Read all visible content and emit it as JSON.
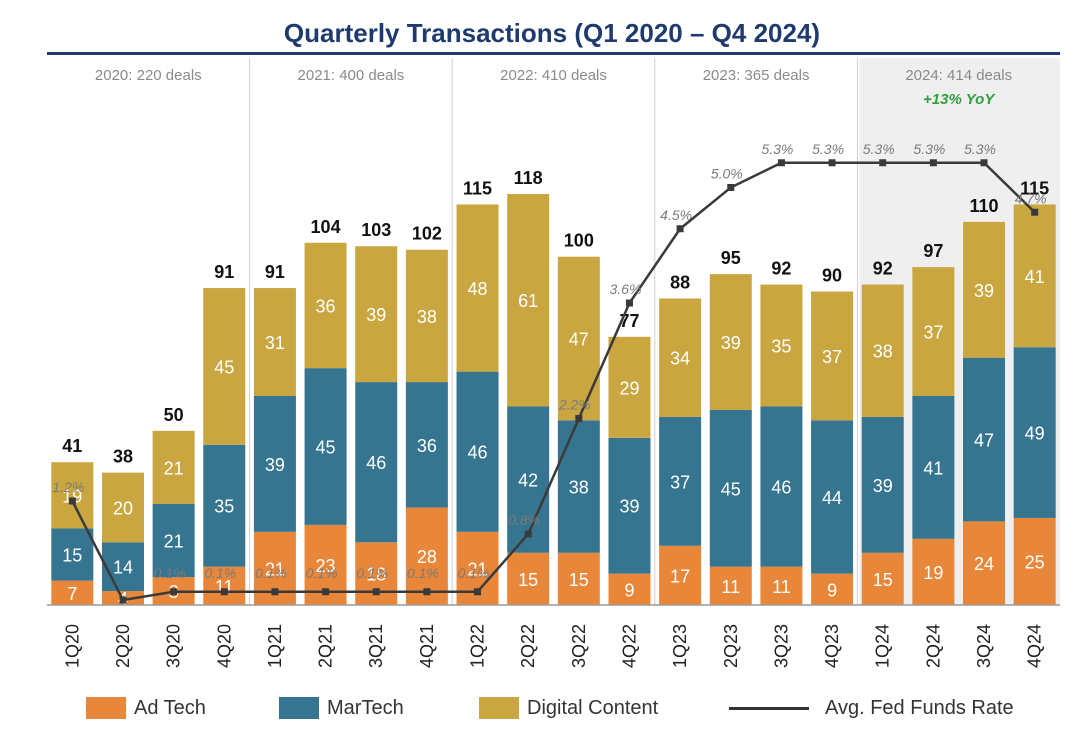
{
  "chart_data": {
    "type": "bar",
    "title": "Quarterly Transactions (Q1 2020 – Q4 2024)",
    "categories": [
      "1Q20",
      "2Q20",
      "3Q20",
      "4Q20",
      "1Q21",
      "2Q21",
      "3Q21",
      "4Q21",
      "1Q22",
      "2Q22",
      "3Q22",
      "4Q22",
      "1Q23",
      "2Q23",
      "3Q23",
      "4Q23",
      "1Q24",
      "2Q24",
      "3Q24",
      "4Q24"
    ],
    "totals": [
      41,
      38,
      50,
      91,
      91,
      104,
      103,
      102,
      115,
      118,
      100,
      77,
      88,
      95,
      92,
      90,
      92,
      97,
      110,
      115
    ],
    "stacked": true,
    "series": [
      {
        "name": "Ad Tech",
        "color": "#e8873a",
        "values": [
          7,
          4,
          8,
          11,
          21,
          23,
          18,
          28,
          21,
          15,
          15,
          9,
          17,
          11,
          11,
          9,
          15,
          19,
          24,
          25
        ]
      },
      {
        "name": "MarTech",
        "color": "#367590",
        "values": [
          15,
          14,
          21,
          35,
          39,
          45,
          46,
          36,
          46,
          42,
          38,
          39,
          37,
          45,
          46,
          44,
          39,
          41,
          47,
          49
        ]
      },
      {
        "name": "Digital Content",
        "color": "#c9a640",
        "values": [
          19,
          20,
          21,
          45,
          31,
          36,
          39,
          38,
          48,
          61,
          47,
          29,
          34,
          39,
          35,
          37,
          38,
          37,
          39,
          41
        ]
      }
    ],
    "line_series": {
      "name": "Avg. Fed Funds Rate",
      "color": "#3a3a3a",
      "values": [
        1.2,
        0.0,
        0.1,
        0.1,
        0.1,
        0.1,
        0.1,
        0.1,
        0.1,
        0.8,
        2.2,
        3.6,
        4.5,
        5.0,
        5.3,
        5.3,
        5.3,
        5.3,
        5.3,
        4.7
      ],
      "labels": [
        "1.2%",
        "",
        "0.1%",
        "0.1%",
        "0.1%",
        "0.1%",
        "0.1%",
        "0.1%",
        "0.1%",
        "0.8%",
        "2.2%",
        "3.6%",
        "4.5%",
        "5.0%",
        "5.3%",
        "5.3%",
        "5.3%",
        "5.3%",
        "5.3%",
        "4.7%"
      ]
    },
    "year_groups": [
      {
        "label": "2020: 220 deals",
        "note": "",
        "highlight": false
      },
      {
        "label": "2021: 400 deals",
        "note": "",
        "highlight": false
      },
      {
        "label": "2022: 410 deals",
        "note": "",
        "highlight": false
      },
      {
        "label": "2023: 365 deals",
        "note": "",
        "highlight": false
      },
      {
        "label": "2024: 414 deals",
        "note": "+13% YoY",
        "highlight": true
      }
    ],
    "legend": {
      "position": "bottom",
      "items": [
        {
          "label": "Ad Tech",
          "kind": "swatch",
          "color": "#e8873a"
        },
        {
          "label": "MarTech",
          "kind": "swatch",
          "color": "#367590"
        },
        {
          "label": "Digital Content",
          "kind": "swatch",
          "color": "#c9a640"
        },
        {
          "label": "Avg. Fed Funds Rate",
          "kind": "line",
          "color": "#333333"
        }
      ]
    },
    "grid": false,
    "colors": {
      "title": "#1f3a6e",
      "yoy": "#2e9e3e",
      "group_text": "#8a8a8a",
      "highlight_bg": "#efefef"
    }
  }
}
